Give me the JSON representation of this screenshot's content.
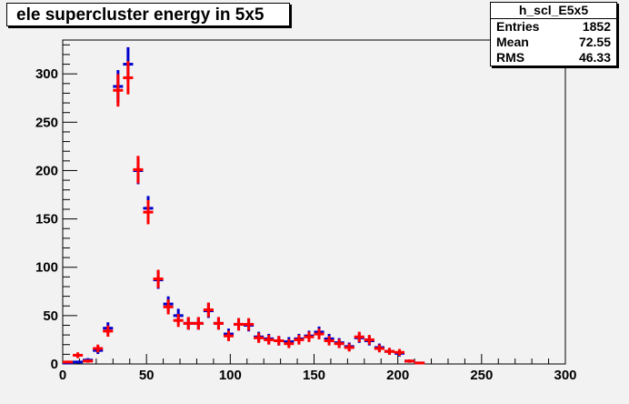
{
  "title": "ele supercluster energy in 5x5",
  "stats": {
    "name": "h_scl_E5x5",
    "rows": [
      {
        "label": "Entries",
        "value": "1852"
      },
      {
        "label": "Mean",
        "value": "72.55"
      },
      {
        "label": "RMS",
        "value": "46.33"
      }
    ]
  },
  "chart_data": {
    "type": "scatter",
    "title": "ele supercluster energy in 5x5",
    "xlim": [
      0,
      300
    ],
    "ylim": [
      0,
      335
    ],
    "x_ticks": [
      0,
      50,
      100,
      150,
      200,
      250,
      300
    ],
    "y_ticks": [
      0,
      50,
      100,
      150,
      200,
      250,
      300
    ],
    "grid": false,
    "series": [
      {
        "color": "#0000cc",
        "x": [
          3,
          9,
          15,
          21,
          27,
          33,
          39,
          45,
          51,
          57,
          63,
          69,
          75,
          81,
          87,
          93,
          99,
          105,
          111,
          117,
          123,
          129,
          135,
          141,
          147,
          153,
          159,
          165,
          171,
          177,
          183,
          189,
          195,
          201,
          207,
          213
        ],
        "values": [
          1,
          2,
          4,
          14,
          37,
          287,
          310,
          200,
          161,
          87,
          62,
          50,
          42,
          42,
          55,
          42,
          31,
          41,
          40,
          28,
          26,
          24,
          23,
          26,
          29,
          33,
          26,
          22,
          18,
          27,
          24,
          17,
          13,
          11,
          3,
          1
        ],
        "errors": [
          1,
          1.4,
          2,
          3.7,
          6.1,
          16.9,
          17.6,
          14.1,
          12.7,
          9.3,
          7.9,
          7.1,
          6.5,
          6.5,
          7.4,
          6.5,
          5.6,
          6.4,
          6.3,
          5.3,
          5.1,
          4.9,
          4.8,
          5.1,
          5.4,
          5.7,
          5.1,
          4.7,
          4.2,
          5.2,
          4.9,
          4.1,
          3.6,
          3.3,
          1.7,
          1
        ]
      },
      {
        "color": "#ff0000",
        "x": [
          3,
          9,
          15,
          21,
          27,
          33,
          39,
          45,
          51,
          57,
          63,
          69,
          75,
          81,
          87,
          93,
          99,
          105,
          111,
          117,
          123,
          129,
          135,
          141,
          147,
          153,
          159,
          165,
          171,
          177,
          183,
          189,
          195,
          201,
          207,
          213
        ],
        "values": [
          2,
          9,
          3,
          16,
          34,
          283,
          296,
          201,
          157,
          88,
          59,
          45,
          42,
          42,
          56,
          42,
          29,
          41,
          41,
          27,
          25,
          24,
          21,
          25,
          28,
          31,
          24,
          21,
          17,
          28,
          25,
          16,
          13,
          12,
          3,
          1
        ],
        "errors": [
          1.4,
          3,
          1.7,
          4,
          5.8,
          16.8,
          17.2,
          14.2,
          12.5,
          9.4,
          7.7,
          6.7,
          6.5,
          6.5,
          7.5,
          6.5,
          5.4,
          6.4,
          6.4,
          5.2,
          5,
          4.9,
          4.6,
          5,
          5.3,
          5.6,
          4.9,
          4.6,
          4.1,
          5.3,
          5,
          4,
          3.6,
          3.5,
          1.7,
          1
        ]
      }
    ],
    "bin_half_width": 3
  }
}
